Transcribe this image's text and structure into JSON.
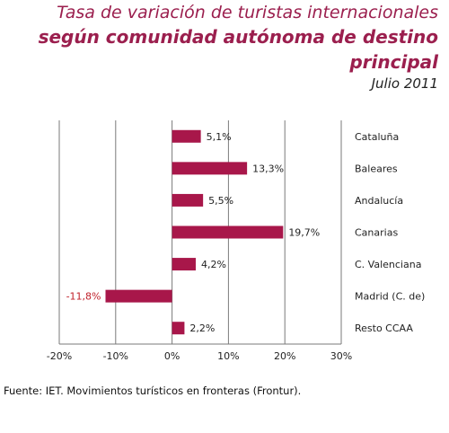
{
  "title": {
    "line1": "Tasa de variación de turistas internacionales",
    "line2": "según comunidad autónoma de destino",
    "line3": "principal",
    "date": "Julio 2011"
  },
  "source": "Fuente: IET. Movimientos turísticos en fronteras (Frontur).",
  "colors": {
    "bar": "#a8174a",
    "negative_label": "#c0202a",
    "title": "#9b1f4e"
  },
  "chart_data": {
    "type": "bar",
    "orientation": "horizontal",
    "categories": [
      "Cataluña",
      "Baleares",
      "Andalucía",
      "Canarias",
      "C. Valenciana",
      "Madrid (C. de)",
      "Resto  CCAA"
    ],
    "category_display": [
      "Cataluña",
      "Baleares",
      "Andalucía",
      "Canarias",
      "C. Valenciana",
      "Madrid (C. de)",
      "Resto  CCAA"
    ],
    "values": [
      5.1,
      13.3,
      5.5,
      19.7,
      4.2,
      -11.8,
      2.2
    ],
    "value_labels": [
      "5,1%",
      "13,3%",
      "5,5%",
      "19,7%",
      "4,2%",
      "-11,8%",
      "2,2%"
    ],
    "xlim": [
      -20,
      30
    ],
    "xticks": [
      -20,
      -10,
      0,
      10,
      20,
      30
    ],
    "xtick_labels": [
      "-20%",
      "-10%",
      "0%",
      "10%",
      "20%",
      "30%"
    ],
    "grid": "vertical",
    "legend": "none"
  }
}
